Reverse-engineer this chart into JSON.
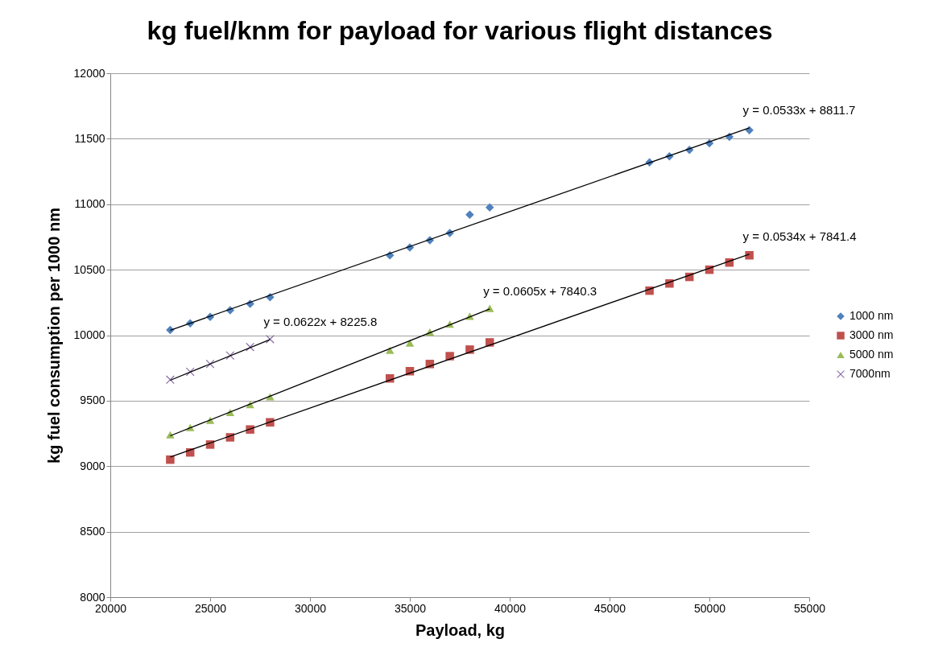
{
  "chart_data": {
    "type": "scatter",
    "title": "kg fuel/knm for payload for various flight distances",
    "xlabel": "Payload, kg",
    "ylabel": "kg fuel consumption per 1000 nm",
    "xlim": [
      20000,
      55000
    ],
    "xticks": [
      20000,
      25000,
      30000,
      35000,
      40000,
      45000,
      50000,
      55000
    ],
    "ylim": [
      8000,
      12000
    ],
    "yticks": [
      8000,
      8500,
      9000,
      9500,
      10000,
      10500,
      11000,
      11500,
      12000
    ],
    "grid": "y",
    "legend": "right",
    "series": [
      {
        "name": "1000 nm",
        "type": "scatter",
        "color": "#4f81bd",
        "marker": "diamond",
        "x": [
          23000,
          24000,
          25000,
          26000,
          27000,
          28000,
          34000,
          35000,
          36000,
          37000,
          38000,
          39000,
          47000,
          48000,
          49000,
          50000,
          51000,
          52000
        ],
        "values": [
          10040,
          10090,
          10140,
          10190,
          10240,
          10290,
          10610,
          10670,
          10725,
          10780,
          10920,
          10975,
          11320,
          11365,
          11415,
          11465,
          11515,
          11565
        ]
      },
      {
        "name": "3000 nm",
        "type": "scatter",
        "color": "#c0504d",
        "marker": "square",
        "x": [
          23000,
          24000,
          25000,
          26000,
          27000,
          28000,
          34000,
          35000,
          36000,
          37000,
          38000,
          39000,
          47000,
          48000,
          49000,
          50000,
          51000,
          52000
        ],
        "values": [
          9050,
          9105,
          9165,
          9220,
          9280,
          9335,
          9670,
          9725,
          9780,
          9840,
          9890,
          9945,
          10340,
          10395,
          10445,
          10500,
          10555,
          10610
        ]
      },
      {
        "name": "5000 nm",
        "type": "scatter",
        "color": "#9bbb59",
        "marker": "triangle",
        "x": [
          23000,
          24000,
          25000,
          26000,
          27000,
          28000,
          34000,
          35000,
          36000,
          37000,
          38000,
          39000
        ],
        "values": [
          9240,
          9295,
          9350,
          9410,
          9470,
          9530,
          9885,
          9940,
          10025,
          10085,
          10145,
          10205
        ]
      },
      {
        "name": "7000nm",
        "type": "scatter",
        "color": "#8064a2",
        "marker": "cross",
        "x": [
          23000,
          24000,
          25000,
          26000,
          27000,
          28000
        ],
        "values": [
          9660,
          9720,
          9780,
          9845,
          9910,
          9970
        ]
      },
      {
        "type": "line",
        "color": "#000000",
        "x": [
          23000,
          52000
        ],
        "values": [
          10038,
          11583
        ]
      },
      {
        "type": "line",
        "color": "#000000",
        "x": [
          23000,
          52000
        ],
        "values": [
          9070,
          10618
        ]
      },
      {
        "type": "line",
        "color": "#000000",
        "x": [
          23000,
          39000
        ],
        "values": [
          9232,
          10200
        ]
      },
      {
        "type": "line",
        "color": "#000000",
        "x": [
          23000,
          28000
        ],
        "values": [
          9656,
          9967
        ]
      }
    ],
    "annotations": [
      {
        "text": "y = 0.0533x + 8811.7",
        "x": 52000,
        "y": 11583
      },
      {
        "text": "y = 0.0534x + 7841.4",
        "x": 52000,
        "y": 10618
      },
      {
        "text": "y = 0.0605x + 7840.3",
        "x": 39000,
        "y": 10200
      },
      {
        "text": "y = 0.0622x + 8225.8",
        "x": 28000,
        "y": 9967
      }
    ]
  }
}
